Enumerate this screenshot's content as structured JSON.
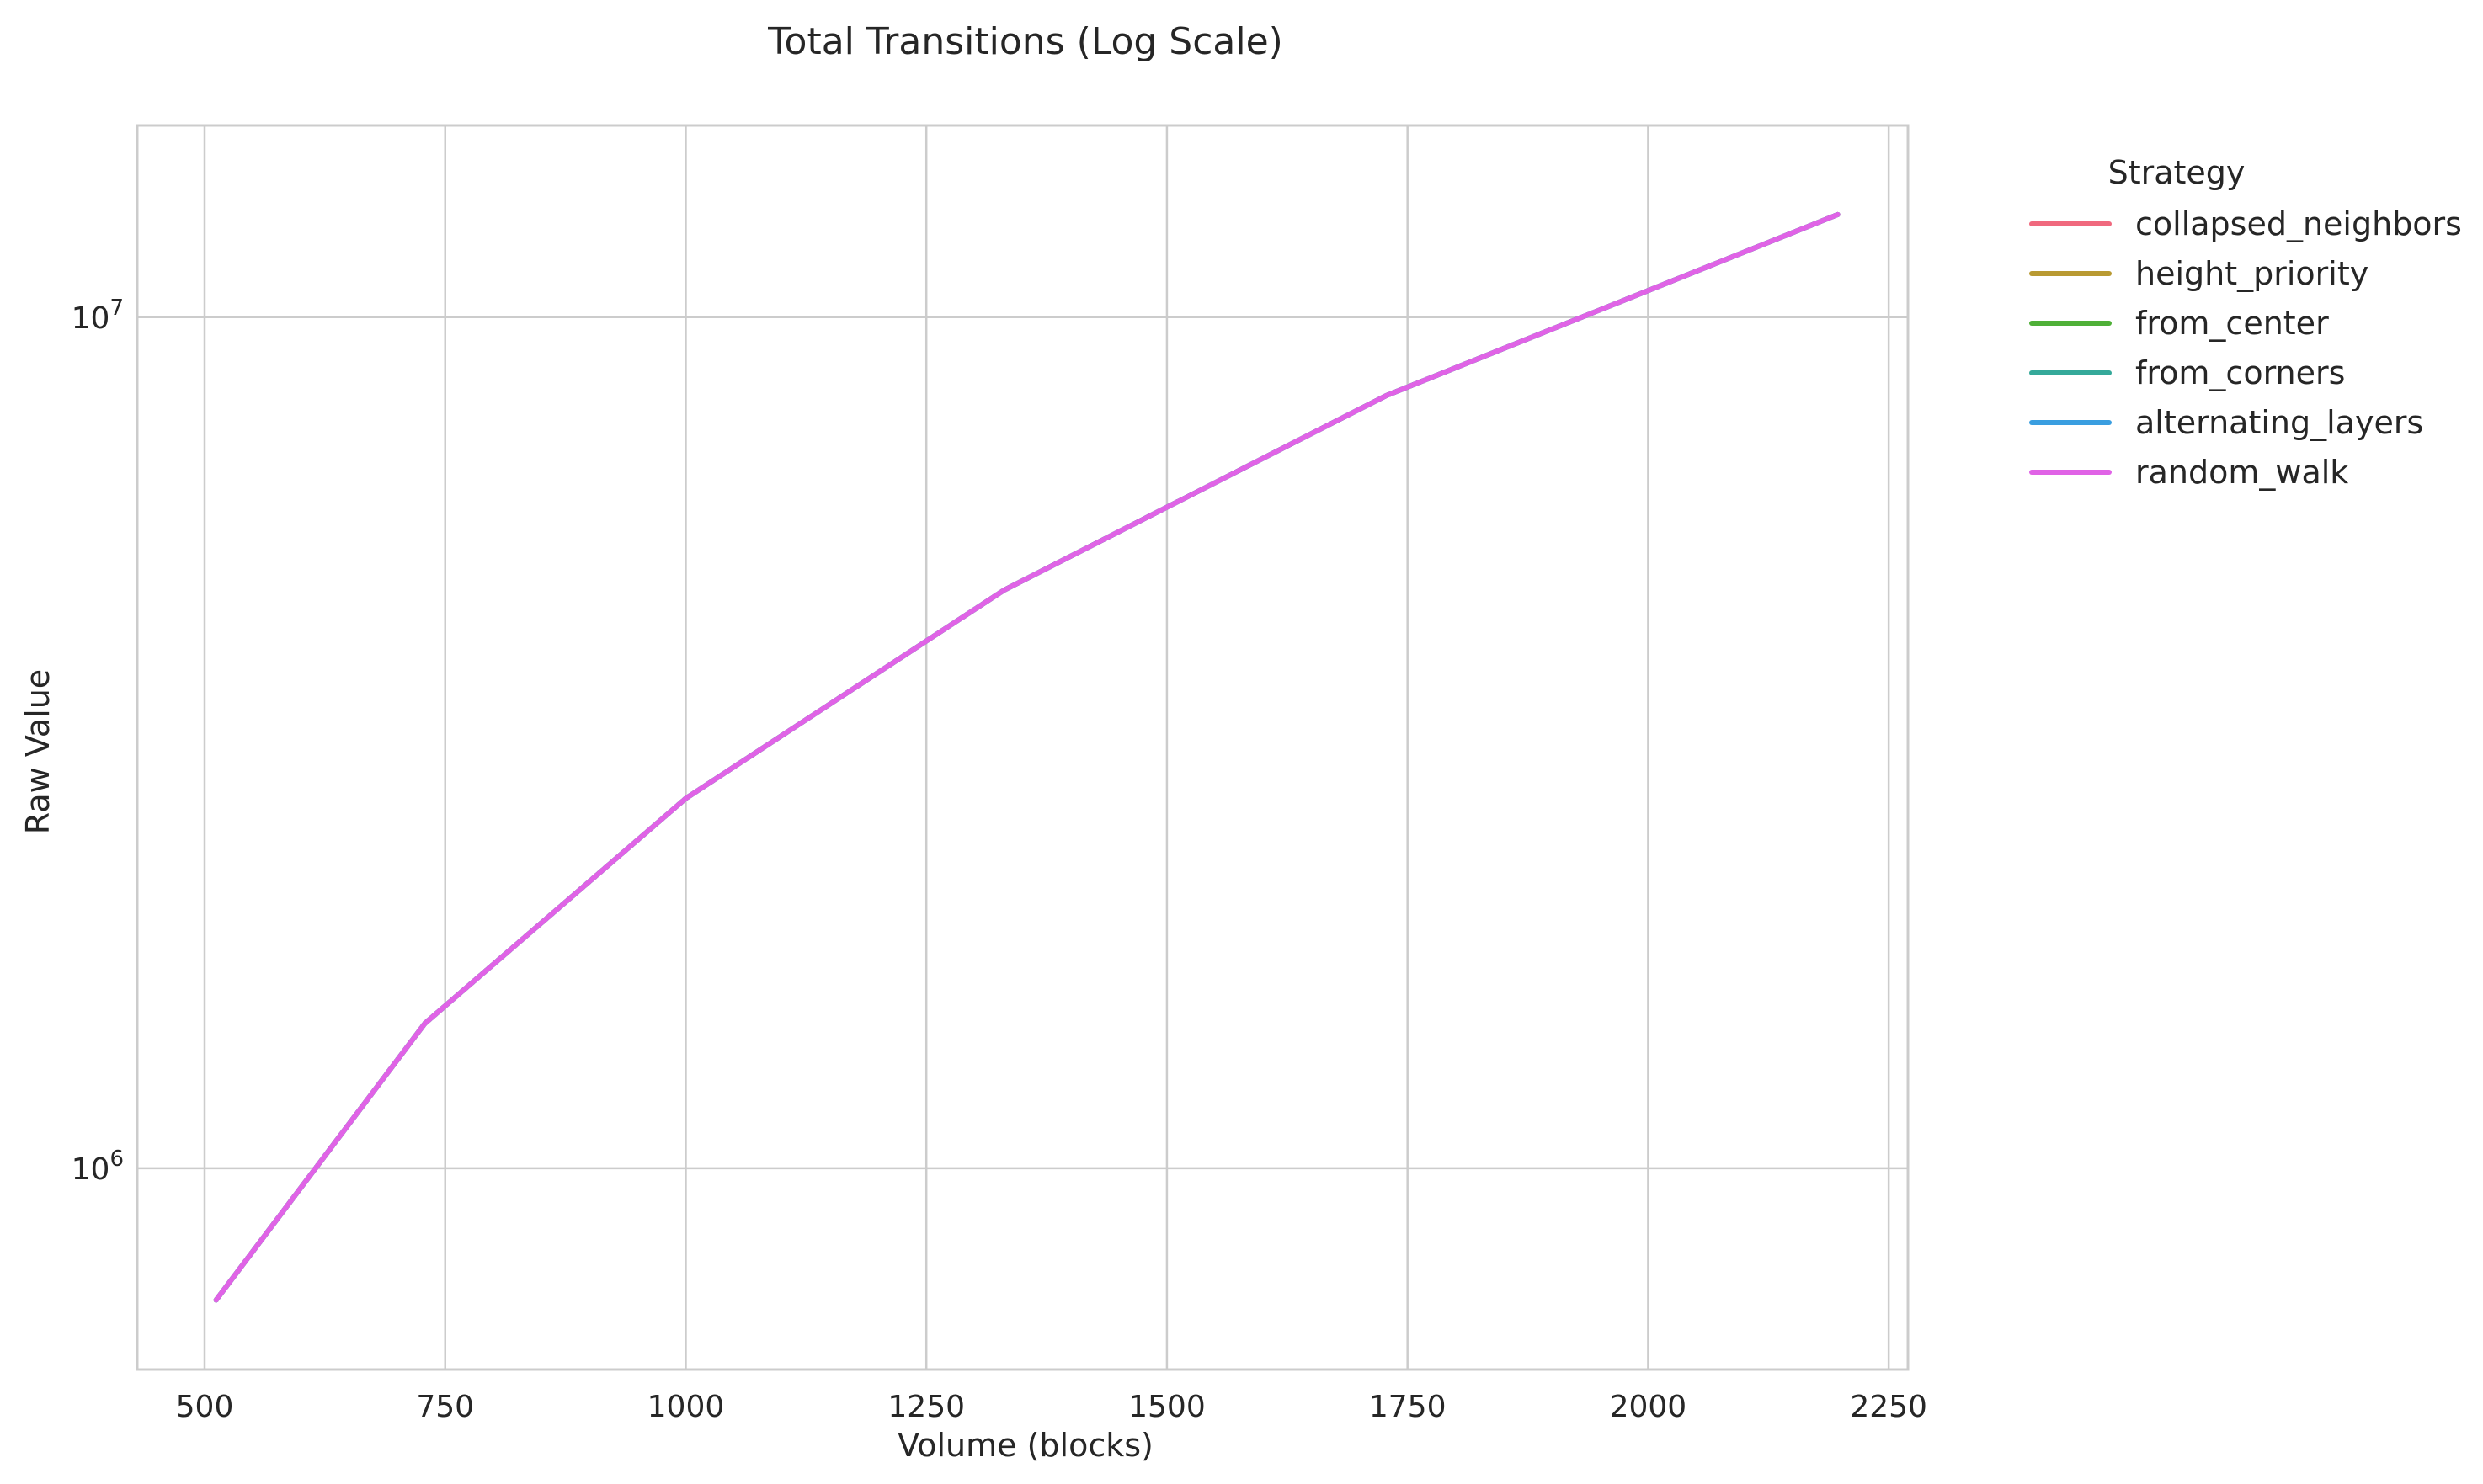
{
  "chart_data": {
    "type": "line",
    "title": "Total Transitions (Log Scale)",
    "xlabel": "Volume (blocks)",
    "ylabel": "Raw Value",
    "yscale": "log",
    "xlim": [
      430,
      2270
    ],
    "ylim": [
      580000,
      16800000
    ],
    "x_ticks": [
      500,
      750,
      1000,
      1250,
      1500,
      1750,
      2000,
      2250
    ],
    "x_tick_labels": [
      "500",
      "750",
      "1000",
      "1250",
      "1500",
      "1750",
      "2000",
      "2250"
    ],
    "y_ticks": [
      1000000,
      10000000
    ],
    "y_tick_labels": [
      {
        "base": "10",
        "exp": "6"
      },
      {
        "base": "10",
        "exp": "7"
      }
    ],
    "grid": true,
    "legend": {
      "title": "Strategy",
      "placement": "outside-right"
    },
    "x": [
      512,
      729,
      1000,
      1331,
      1728,
      2197
    ],
    "series": [
      {
        "name": "collapsed_neighbors",
        "color": "#f0697e",
        "values": [
          700000,
          1480000,
          2720000,
          4780000,
          8090000,
          13200000
        ]
      },
      {
        "name": "height_priority",
        "color": "#b99a32",
        "values": [
          700000,
          1480000,
          2720000,
          4780000,
          8090000,
          13200000
        ]
      },
      {
        "name": "from_center",
        "color": "#4fb038",
        "values": [
          700000,
          1480000,
          2720000,
          4780000,
          8090000,
          13200000
        ]
      },
      {
        "name": "from_corners",
        "color": "#35a99a",
        "values": [
          700000,
          1480000,
          2720000,
          4780000,
          8090000,
          13200000
        ]
      },
      {
        "name": "alternating_layers",
        "color": "#3a9ee0",
        "values": [
          700000,
          1480000,
          2720000,
          4780000,
          8090000,
          13200000
        ]
      },
      {
        "name": "random_walk",
        "color": "#e063e6",
        "values": [
          700000,
          1480000,
          2720000,
          4780000,
          8090000,
          13200000
        ]
      }
    ]
  }
}
